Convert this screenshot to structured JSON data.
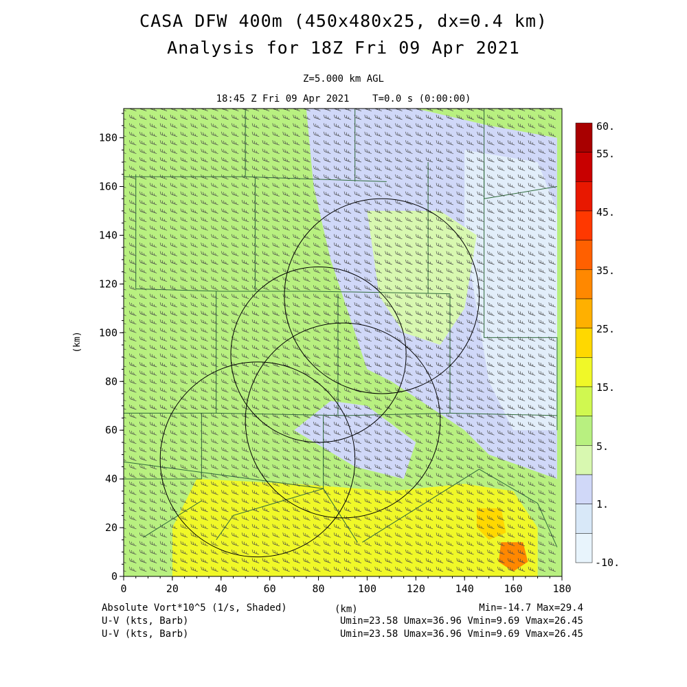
{
  "title": "CASA DFW 400m (450x480x25, dx=0.4 km)",
  "subtitle": "Analysis for 18Z Fri 09 Apr 2021",
  "level_label": "Z=5.000 km AGL",
  "time_label": "18:45 Z Fri 09 Apr 2021    T=0.0 s (0:00:00)",
  "footer": {
    "field1": "Absolute Vort*10^5 (1/s, Shaded)",
    "field2": "U-V (kts, Barb)",
    "field3": "U-V (kts, Barb)",
    "xunit": "(km)",
    "minmax": "Min=-14.7 Max=29.4",
    "wind1": "Umin=23.58 Umax=36.96 Vmin=9.69 Vmax=26.45",
    "wind2": "Umin=23.58 Umax=36.96 Vmin=9.69 Vmax=26.45"
  },
  "chart_data": {
    "type": "heatmap",
    "xlabel": "(km)",
    "ylabel": "(km)",
    "xlim": [
      0,
      180
    ],
    "ylim": [
      0,
      192
    ],
    "x_ticks": [
      0,
      20,
      40,
      60,
      80,
      100,
      120,
      140,
      160,
      180
    ],
    "y_ticks": [
      0,
      20,
      40,
      60,
      80,
      100,
      120,
      140,
      160,
      180
    ],
    "colorbar": {
      "labels": [
        "60.",
        "55.",
        "45.",
        "35.",
        "25.",
        "15.",
        "5.",
        "1.",
        "-10."
      ],
      "colors": [
        "#a80000",
        "#c80000",
        "#e81800",
        "#ff3800",
        "#ff6000",
        "#ff8800",
        "#ffb000",
        "#ffd800",
        "#f0f828",
        "#d0f850",
        "#b8f080",
        "#d8f8b0",
        "#d0d8f8",
        "#d8e8f8",
        "#e8f4fc"
      ]
    },
    "field_regions": [
      {
        "level": "1",
        "color": "#d0d8f8",
        "points": [
          [
            75,
            192
          ],
          [
            120,
            192
          ],
          [
            150,
            185
          ],
          [
            178,
            180
          ],
          [
            178,
            40
          ],
          [
            150,
            50
          ],
          [
            140,
            60
          ],
          [
            125,
            70
          ],
          [
            110,
            80
          ],
          [
            100,
            85
          ],
          [
            95,
            100
          ],
          [
            90,
            115
          ],
          [
            85,
            130
          ],
          [
            78,
            160
          ],
          [
            75,
            192
          ]
        ]
      },
      {
        "level": "1",
        "color": "#d0d8f8",
        "points": [
          [
            70,
            60
          ],
          [
            95,
            45
          ],
          [
            115,
            40
          ],
          [
            120,
            55
          ],
          [
            100,
            70
          ],
          [
            85,
            72
          ],
          [
            70,
            60
          ]
        ]
      },
      {
        "level": "-10.",
        "color": "#e2eefa",
        "points": [
          [
            140,
            175
          ],
          [
            170,
            170
          ],
          [
            178,
            150
          ],
          [
            178,
            60
          ],
          [
            160,
            60
          ],
          [
            150,
            80
          ],
          [
            145,
            110
          ],
          [
            140,
            140
          ],
          [
            140,
            175
          ]
        ]
      },
      {
        "level": "5.",
        "color": "#d8f8b0",
        "points": [
          [
            100,
            150
          ],
          [
            130,
            150
          ],
          [
            145,
            140
          ],
          [
            140,
            110
          ],
          [
            130,
            95
          ],
          [
            115,
            100
          ],
          [
            105,
            115
          ],
          [
            100,
            150
          ]
        ]
      },
      {
        "level": "15.",
        "color": "#f0f828",
        "points": [
          [
            30,
            40
          ],
          [
            70,
            38
          ],
          [
            110,
            35
          ],
          [
            140,
            38
          ],
          [
            160,
            35
          ],
          [
            170,
            20
          ],
          [
            170,
            0
          ],
          [
            20,
            0
          ],
          [
            20,
            20
          ],
          [
            30,
            40
          ]
        ]
      },
      {
        "level": "25.",
        "color": "#ffd800",
        "points": [
          [
            145,
            28
          ],
          [
            155,
            28
          ],
          [
            157,
            18
          ],
          [
            150,
            15
          ],
          [
            145,
            20
          ],
          [
            145,
            28
          ]
        ]
      },
      {
        "level": "35.",
        "color": "#ff8800",
        "points": [
          [
            155,
            14
          ],
          [
            164,
            14
          ],
          [
            166,
            6
          ],
          [
            160,
            2
          ],
          [
            154,
            6
          ],
          [
            155,
            14
          ]
        ]
      }
    ],
    "range_rings": [
      {
        "center": [
          106,
          115
        ],
        "radius": 40
      },
      {
        "center": [
          80,
          91
        ],
        "radius": 36
      },
      {
        "center": [
          90,
          64
        ],
        "radius": 40
      },
      {
        "center": [
          55,
          48
        ],
        "radius": 40
      }
    ],
    "barbs": {
      "direction_deg": 240,
      "speed_kts": 40
    }
  }
}
